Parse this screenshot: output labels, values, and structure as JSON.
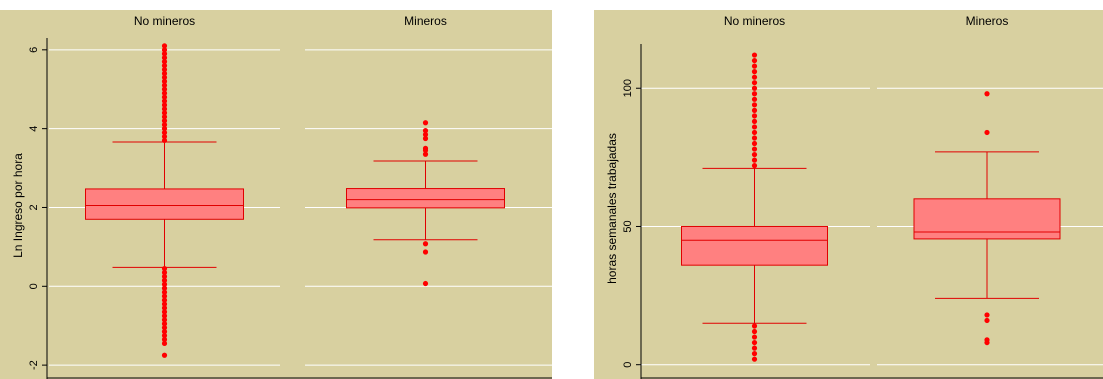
{
  "colors": {
    "background": "#d8d0a0",
    "gridline": "#ffffff",
    "box_fill": "#ff8080",
    "box_stroke": "#e00000",
    "outlier": "#ff0000",
    "axis": "#000000"
  },
  "chart_data": [
    {
      "type": "boxplot",
      "ylabel": "Ln Ingreso por hora",
      "ylim": [
        -2.2,
        6.3
      ],
      "yticks": [
        -2,
        0,
        2,
        4,
        6
      ],
      "grid": true,
      "panels": [
        {
          "title": "No mineros",
          "whisker_low": 0.48,
          "q1": 1.7,
          "median": 2.05,
          "q3": 2.47,
          "whisker_high": 3.66,
          "outliers": [
            6.1,
            6.0,
            5.9,
            5.8,
            5.7,
            5.6,
            5.5,
            5.4,
            5.3,
            5.2,
            5.1,
            5.0,
            4.9,
            4.8,
            4.7,
            4.6,
            4.5,
            4.4,
            4.3,
            4.2,
            4.1,
            4.0,
            3.9,
            3.8,
            3.7,
            0.45,
            0.35,
            0.25,
            0.15,
            0.05,
            -0.05,
            -0.15,
            -0.25,
            -0.35,
            -0.45,
            -0.55,
            -0.65,
            -0.75,
            -0.85,
            -0.95,
            -1.05,
            -1.15,
            -1.25,
            -1.35,
            -1.45,
            -1.75
          ]
        },
        {
          "title": "Mineros",
          "whisker_low": 1.18,
          "q1": 1.99,
          "median": 2.2,
          "q3": 2.48,
          "whisker_high": 3.18,
          "outliers": [
            4.15,
            3.95,
            3.85,
            3.75,
            3.5,
            3.45,
            3.35,
            1.08,
            0.87,
            0.07
          ]
        }
      ]
    },
    {
      "type": "boxplot",
      "ylabel": "horas semanales trabajadas",
      "ylim": [
        -3,
        116
      ],
      "yticks": [
        0,
        50,
        100
      ],
      "grid": true,
      "panels": [
        {
          "title": "No mineros",
          "whisker_low": 15,
          "q1": 36,
          "median": 45,
          "q3": 50,
          "whisker_high": 71,
          "outliers": [
            112,
            110,
            108,
            106,
            104,
            102,
            100,
            98,
            96,
            94,
            92,
            90,
            88,
            86,
            84,
            82,
            80,
            78,
            76,
            74,
            72,
            14,
            12,
            10,
            8,
            6,
            4,
            2
          ]
        },
        {
          "title": "Mineros",
          "whisker_low": 24,
          "q1": 45.5,
          "median": 48,
          "q3": 60,
          "whisker_high": 77,
          "outliers": [
            98,
            84,
            18,
            16,
            9,
            8
          ]
        }
      ]
    }
  ]
}
